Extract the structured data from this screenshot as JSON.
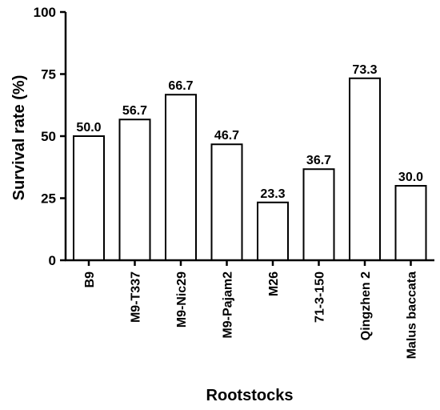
{
  "chart_data": {
    "type": "bar",
    "title": "",
    "xlabel": "Rootstocks",
    "ylabel": "Survival rate (%)",
    "categories": [
      "B9",
      "M9-T337",
      "M9-Nic29",
      "M9-Pajam2",
      "M26",
      "71-3-150",
      "Qingzhen 2",
      "Malus baccata"
    ],
    "values": [
      50.0,
      56.7,
      66.7,
      46.7,
      23.3,
      36.7,
      73.3,
      30.0
    ],
    "data_labels": [
      "50.0",
      "56.7",
      "66.7",
      "46.7",
      "23.3",
      "36.7",
      "73.3",
      "30.0"
    ],
    "ylim": [
      0,
      100
    ],
    "yticks": [
      0,
      25,
      50,
      75,
      100
    ],
    "grid": false,
    "bar_fill": "#ffffff",
    "bar_stroke": "#000000"
  }
}
